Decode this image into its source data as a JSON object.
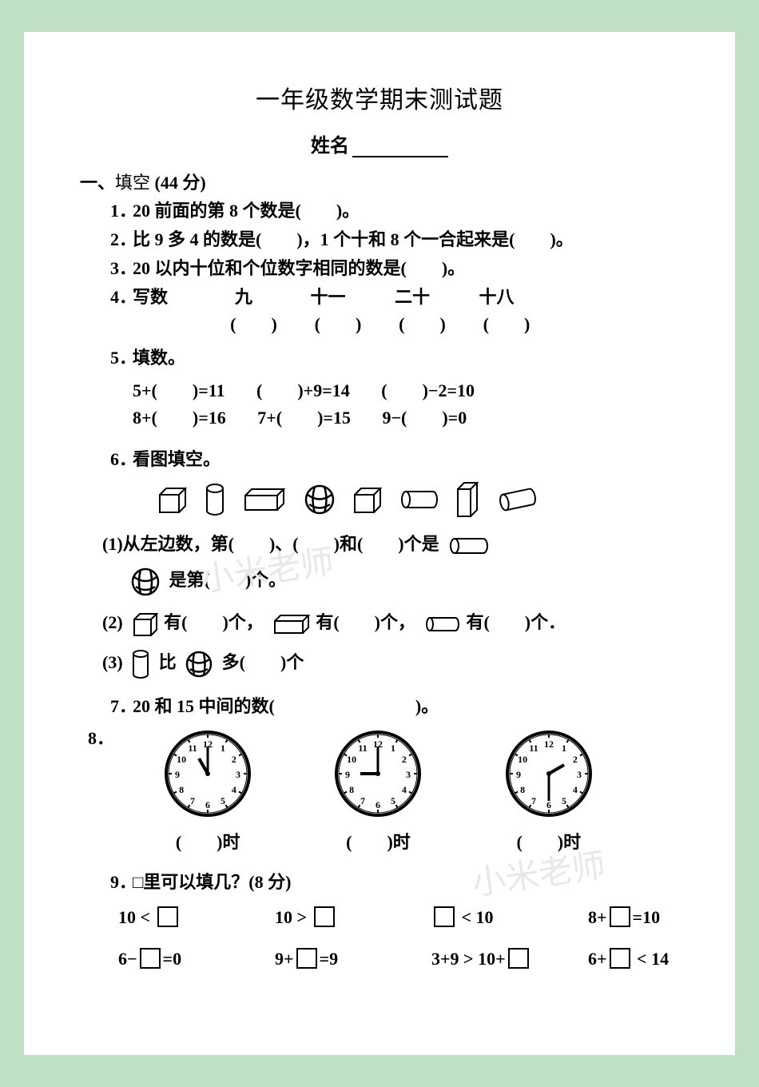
{
  "title": "一年级数学期末测试题",
  "name_label": "姓名",
  "section1": {
    "head_prefix": "一、",
    "head_thin": "填空",
    "head_points": " (44 分)"
  },
  "q1": {
    "num": "1．",
    "text": "20 前面的第 8 个数是(　　)。"
  },
  "q2": {
    "num": "2．",
    "text": "比 9 多 4 的数是(　　)，1 个十和 8 个一合起来是(　　)。"
  },
  "q3": {
    "num": "3．",
    "text": "20 以内十位和个位数字相同的数是(　　)。"
  },
  "q4": {
    "num": "4．",
    "label": "写数",
    "words": [
      "九",
      "十一",
      "二十",
      "十八"
    ],
    "blanks": [
      "(　　)",
      "(　　)",
      "(　　)",
      "(　　)"
    ]
  },
  "q5": {
    "num": "5．",
    "label": "填数。",
    "r1": [
      "5+(　　)=11",
      "(　　)+9=14",
      "(　　)−2=10"
    ],
    "r2": [
      "8+(　　)=16",
      "7+(　　)=15",
      "9−(　　)=0"
    ]
  },
  "q6": {
    "num": "6．",
    "label": "看图填空。",
    "s1a": "(1)从左边数，第(　　)、(　　)和(　　)个是",
    "s1b": "是第(　　)个。",
    "s2a": "(2)",
    "s2_cube": "有(　　)个，",
    "s2_box": "有(　　)个，",
    "s2_cyl": "有(　　)个．",
    "s3a": "(3)",
    "s3_mid": "比",
    "s3_end": "多(　　)个"
  },
  "q7": {
    "num": "7．",
    "text": "20 和 15 中间的数(　　　　　　　　)。"
  },
  "q8": {
    "num": "8．",
    "labels": [
      "(　　)时",
      "(　　)时",
      "(　　)时"
    ],
    "clocks": [
      {
        "hour_angle": -30,
        "min_angle": 0
      },
      {
        "hour_angle": -90,
        "min_angle": 0
      },
      {
        "hour_angle": 60,
        "min_angle": 180
      }
    ]
  },
  "q9": {
    "num": "9．",
    "label": "□里可以填几？(8 分)",
    "cells": [
      [
        "10 < □",
        "10 > □",
        "□ < 10",
        "8+□=10"
      ],
      [
        "6−□=0",
        "9+□=9",
        "3+9 > 10+□",
        "6+□ < 14"
      ]
    ]
  },
  "watermark": "小米老师"
}
